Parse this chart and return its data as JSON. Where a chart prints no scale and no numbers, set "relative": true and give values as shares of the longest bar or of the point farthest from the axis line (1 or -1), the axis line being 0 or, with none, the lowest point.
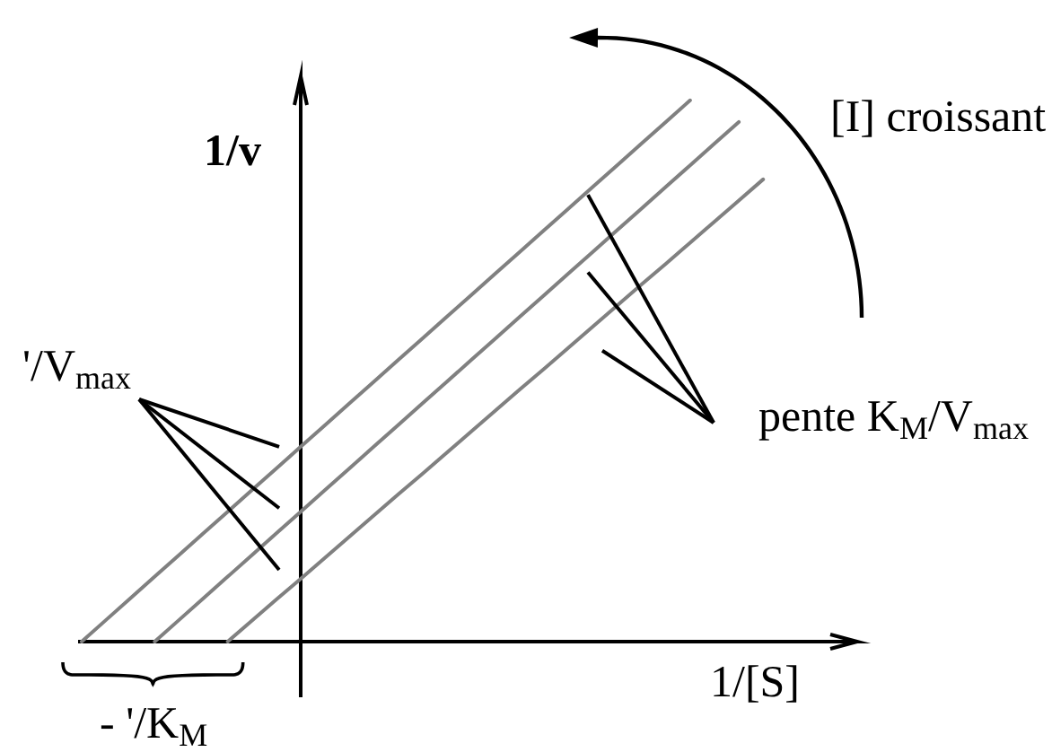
{
  "chart_data": {
    "type": "line",
    "relative": true,
    "xlabel": "1/[S]",
    "ylabel": "1/v",
    "annotations": [
      "[I] croissant",
      "'/V$_{max}$",
      "pente K$_{M}$/V$_{max}$",
      "- '/K$_{M}$"
    ],
    "categories": [
      null,
      null,
      null,
      null,
      null,
      null,
      null,
      null,
      null,
      null,
      null,
      null,
      null,
      null,
      null,
      null,
      null,
      null,
      null,
      null,
      null,
      null,
      null,
      null,
      null,
      null,
      null,
      null,
      null
    ],
    "series": [
      {
        "color": "#808080",
        "values": [
          0,
          0.04,
          0.08,
          0.12,
          0.16,
          0.2,
          0.24,
          0.28,
          0.32,
          0.36,
          0.4,
          0.44,
          0.48,
          0.52,
          0.56,
          0.6,
          0.64,
          0.68,
          0.72,
          0.76,
          0.8,
          0.84,
          0.88,
          0.92,
          0.96,
          1,
          null,
          null,
          null
        ]
      },
      {
        "color": "#808080",
        "values": [
          null,
          null,
          null,
          0,
          0.04,
          0.08,
          0.12,
          0.16,
          0.2,
          0.24,
          0.28,
          0.32,
          0.36,
          0.4,
          0.44,
          0.48,
          0.52,
          0.56,
          0.6,
          0.64,
          0.68,
          0.72,
          0.76,
          0.8,
          0.84,
          0.88,
          0.92,
          0.96,
          null
        ]
      },
      {
        "color": "#808080",
        "values": [
          null,
          null,
          null,
          null,
          null,
          null,
          0,
          0.039,
          0.078,
          0.116,
          0.155,
          0.194,
          0.233,
          0.272,
          0.31,
          0.349,
          0.388,
          0.427,
          0.466,
          0.504,
          0.543,
          0.582,
          0.621,
          0.66,
          0.698,
          0.737,
          0.776,
          0.815,
          0.854
        ]
      }
    ]
  }
}
